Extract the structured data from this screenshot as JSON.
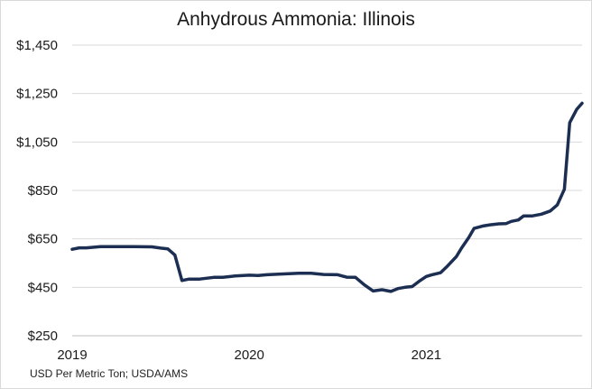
{
  "chart_data": {
    "type": "line",
    "title": "Anhydrous Ammonia: Illinois",
    "source_note": "USD Per Metric Ton; USDA/AMS",
    "xlabel": "",
    "ylabel": "",
    "ylim": [
      250,
      1450
    ],
    "y_ticks": [
      250,
      450,
      650,
      850,
      1050,
      1250,
      1450
    ],
    "y_tick_labels": [
      "$250",
      "$450",
      "$650",
      "$850",
      "$1,050",
      "$1,250",
      "$1,450"
    ],
    "x_ticks": [
      2019,
      2020,
      2021
    ],
    "x_tick_labels": [
      "2019",
      "2020",
      "2021"
    ],
    "xlim": [
      2019.0,
      2021.88
    ],
    "grid": "horizontal",
    "line_color": "#1c2f52",
    "series": [
      {
        "x": [
          2019.0,
          2019.04,
          2019.08,
          2019.16,
          2019.25,
          2019.35,
          2019.45,
          2019.5,
          2019.54,
          2019.58,
          2019.62,
          2019.66,
          2019.72,
          2019.8,
          2019.85,
          2019.92,
          2020.0,
          2020.05,
          2020.1,
          2020.18,
          2020.28,
          2020.35,
          2020.42,
          2020.5,
          2020.55,
          2020.6,
          2020.65,
          2020.7,
          2020.75,
          2020.8,
          2020.84,
          2020.88,
          2020.92,
          2020.96,
          2021.0,
          2021.03,
          2021.08,
          2021.12,
          2021.17,
          2021.2,
          2021.24,
          2021.27,
          2021.32,
          2021.36,
          2021.41,
          2021.45,
          2021.48,
          2021.52,
          2021.55,
          2021.6,
          2021.65,
          2021.7,
          2021.74,
          2021.78,
          2021.81,
          2021.85,
          2021.88
        ],
        "y": [
          607,
          613,
          613,
          618,
          618,
          618,
          617,
          612,
          609,
          583,
          478,
          484,
          484,
          491,
          491,
          497,
          500,
          499,
          502,
          505,
          508,
          508,
          503,
          502,
          492,
          491,
          460,
          435,
          440,
          433,
          445,
          450,
          453,
          475,
          495,
          501,
          510,
          538,
          577,
          613,
          655,
          693,
          703,
          708,
          712,
          713,
          722,
          728,
          745,
          745,
          752,
          765,
          790,
          855,
          1130,
          1185,
          1210
        ]
      }
    ]
  }
}
